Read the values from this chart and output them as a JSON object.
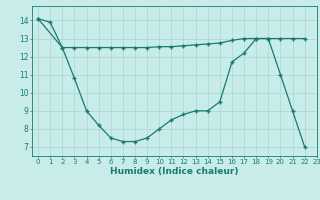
{
  "line1_x": [
    0,
    1,
    2,
    3,
    4,
    5,
    6,
    7,
    8,
    9,
    10,
    11,
    12,
    13,
    14,
    15,
    16,
    17,
    18,
    19,
    20,
    21,
    22
  ],
  "line1_y": [
    14.1,
    13.9,
    12.5,
    10.8,
    9.0,
    8.2,
    7.5,
    7.3,
    7.3,
    7.5,
    8.0,
    8.5,
    8.8,
    9.0,
    9.0,
    9.5,
    11.7,
    12.2,
    13.0,
    13.0,
    11.0,
    9.0,
    7.0
  ],
  "line2_x": [
    0,
    2,
    3,
    4,
    5,
    6,
    7,
    8,
    9,
    10,
    11,
    12,
    13,
    14,
    15,
    16,
    17,
    18,
    19,
    20,
    21,
    22
  ],
  "line2_y": [
    14.1,
    12.5,
    12.5,
    12.5,
    12.5,
    12.5,
    12.5,
    12.5,
    12.5,
    12.55,
    12.55,
    12.6,
    12.65,
    12.7,
    12.75,
    12.9,
    13.0,
    13.0,
    13.0,
    13.0,
    13.0,
    13.0
  ],
  "line_color": "#1a7a6e",
  "bg_color": "#c8ecea",
  "grid_color": "#b0d8d4",
  "tick_color": "#1a7a6e",
  "xlabel": "Humidex (Indice chaleur)",
  "ylim": [
    6.5,
    14.8
  ],
  "xlim": [
    -0.5,
    23.0
  ],
  "yticks": [
    7,
    8,
    9,
    10,
    11,
    12,
    13,
    14
  ],
  "xticks": [
    0,
    1,
    2,
    3,
    4,
    5,
    6,
    7,
    8,
    9,
    10,
    11,
    12,
    13,
    14,
    15,
    16,
    17,
    18,
    19,
    20,
    21,
    22,
    23
  ],
  "xtick_labels": [
    "0",
    "1",
    "2",
    "3",
    "4",
    "5",
    "6",
    "7",
    "8",
    "9",
    "10",
    "11",
    "12",
    "13",
    "14",
    "15",
    "16",
    "17",
    "18",
    "19",
    "20",
    "21",
    "22",
    "23"
  ]
}
